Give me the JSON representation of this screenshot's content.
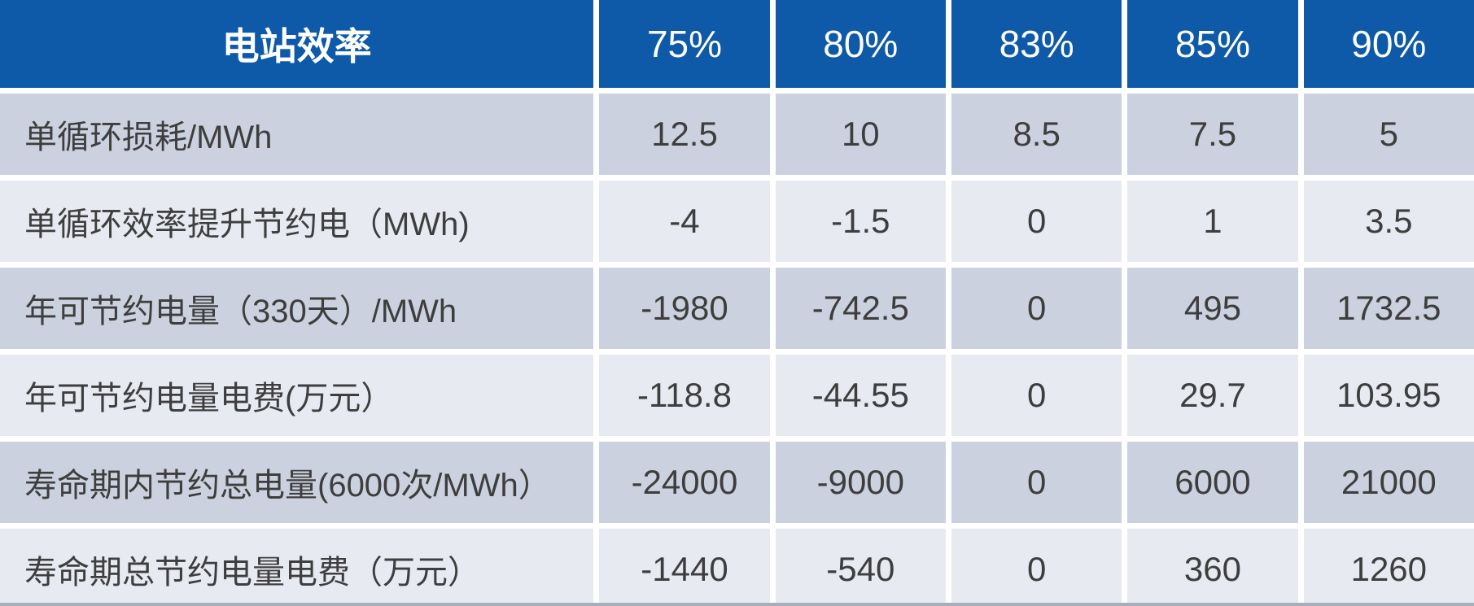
{
  "colors": {
    "header_bg": "#0E5AA8",
    "header_text": "#FFFFFF",
    "row_band_dark": "#CCD1E0",
    "row_band_light": "#E8EAF2",
    "body_text": "#3E3E3E",
    "grid_gap": "#FFFFFF",
    "bottom_rule": "#A8ADBA"
  },
  "chart_data": {
    "type": "table",
    "corner_label": "电站效率",
    "columns": [
      "75%",
      "80%",
      "83%",
      "85%",
      "90%"
    ],
    "rows": [
      {
        "label": "单循环损耗/MWh",
        "values": [
          "12.5",
          "10",
          "8.5",
          "7.5",
          "5"
        ]
      },
      {
        "label": "单循环效率提升节约电（MWh)",
        "values": [
          "-4",
          "-1.5",
          "0",
          "1",
          "3.5"
        ]
      },
      {
        "label": "年可节约电量（330天）/MWh",
        "values": [
          "-1980",
          "-742.5",
          "0",
          "495",
          "1732.5"
        ]
      },
      {
        "label": "年可节约电量电费(万元）",
        "values": [
          "-118.8",
          "-44.55",
          "0",
          "29.7",
          "103.95"
        ]
      },
      {
        "label": "寿命期内节约总电量(6000次/MWh）",
        "values": [
          "-24000",
          "-9000",
          "0",
          "6000",
          "21000"
        ]
      },
      {
        "label": "寿命期总节约电量电费（万元）",
        "values": [
          "-1440",
          "-540",
          "0",
          "360",
          "1260"
        ]
      }
    ]
  }
}
